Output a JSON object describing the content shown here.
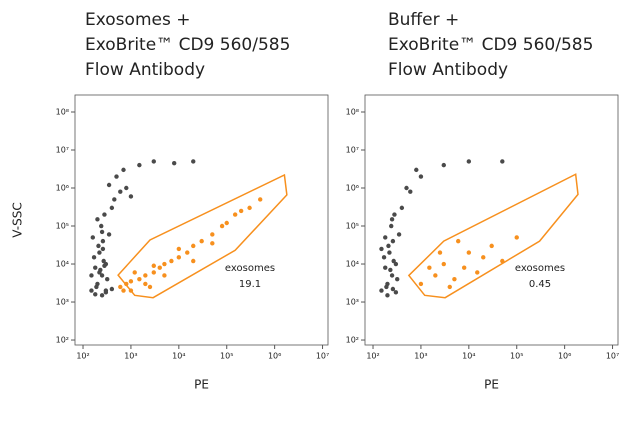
{
  "chart_data": [
    {
      "type": "scatter",
      "log": true,
      "title": [
        "Exosomes +",
        "ExoBrite™ CD9 560/585",
        "Flow Antibody"
      ],
      "xlabel": "PE",
      "ylabel": "V-SSC",
      "xlim": [
        68,
        13000000
      ],
      "ylim": [
        74,
        280000000
      ],
      "xticks": [
        {
          "value": 100,
          "label": "10²"
        },
        {
          "value": 1000,
          "label": "10³"
        },
        {
          "value": 10000,
          "label": "10⁴"
        },
        {
          "value": 100000,
          "label": "10⁵"
        },
        {
          "value": 1000000,
          "label": "10⁶"
        },
        {
          "value": 10000000,
          "label": "10⁷"
        }
      ],
      "yticks": [
        {
          "value": 100,
          "label": "10²"
        },
        {
          "value": 1000,
          "label": "10³"
        },
        {
          "value": 10000,
          "label": "10⁴"
        },
        {
          "value": 100000,
          "label": "10⁵"
        },
        {
          "value": 1000000,
          "label": "10⁶"
        },
        {
          "value": 10000000,
          "label": "10⁷"
        },
        {
          "value": 100000000,
          "label": "10⁸"
        }
      ],
      "series": [
        {
          "color": "#4a4a4a",
          "x": [
            150,
            200,
            250,
            180,
            300,
            220,
            260,
            350,
            170,
            240,
            280,
            210,
            320,
            190,
            230,
            270,
            400,
            160,
            250,
            300,
            200,
            450,
            600,
            800,
            1000,
            350,
            500,
            700,
            150,
            220,
            280,
            260,
            1500,
            3000,
            8000,
            20000,
            300,
            400,
            250,
            180
          ],
          "values": [
            2000,
            3000,
            5000,
            8000,
            10000,
            20000,
            40000,
            60000,
            15000,
            100000,
            200000,
            30000,
            4000,
            2500,
            7000,
            12000,
            300000,
            50000,
            1500,
            2000,
            150000,
            500000,
            800000,
            1000000,
            600000,
            1200000,
            2000000,
            3000000,
            5000,
            6000,
            9000,
            25000,
            4000000,
            5000000,
            4500000,
            5000000,
            1800,
            2200,
            70000,
            1600
          ]
        },
        {
          "color": "#f7901e",
          "x": [
            600,
            800,
            1000,
            1500,
            2000,
            3000,
            4000,
            5000,
            7000,
            10000,
            15000,
            20000,
            30000,
            50000,
            80000,
            100000,
            150000,
            200000,
            300000,
            500000,
            1000,
            2000,
            3000,
            5000,
            10000,
            20000,
            50000,
            700,
            1200,
            2500
          ],
          "values": [
            2500,
            3000,
            3500,
            4000,
            5000,
            6000,
            8000,
            10000,
            12000,
            15000,
            20000,
            30000,
            40000,
            60000,
            100000,
            120000,
            200000,
            250000,
            300000,
            500000,
            2000,
            3000,
            9000,
            5000,
            25000,
            12000,
            35000,
            2000,
            6000,
            2500
          ]
        }
      ],
      "gate": {
        "color": "#f7901e",
        "label": "exosomes",
        "value": 19.1,
        "x": [
          540,
          2500,
          1600000,
          1800000,
          150000,
          2900,
          1200
        ],
        "y": [
          5100,
          43000,
          2200000,
          660000,
          23000,
          1300,
          1500
        ]
      }
    },
    {
      "type": "scatter",
      "log": true,
      "title": [
        "Buffer +",
        "ExoBrite™ CD9 560/585",
        "Flow Antibody"
      ],
      "xlabel": "PE",
      "xlim": [
        68,
        13000000
      ],
      "ylim": [
        74,
        280000000
      ],
      "xticks": [
        {
          "value": 100,
          "label": "10²"
        },
        {
          "value": 1000,
          "label": "10³"
        },
        {
          "value": 10000,
          "label": "10⁴"
        },
        {
          "value": 100000,
          "label": "10⁵"
        },
        {
          "value": 1000000,
          "label": "10⁶"
        },
        {
          "value": 10000000,
          "label": "10⁷"
        }
      ],
      "yticks": [
        {
          "value": 100,
          "label": "10²"
        },
        {
          "value": 1000,
          "label": "10³"
        },
        {
          "value": 10000,
          "label": "10⁴"
        },
        {
          "value": 100000,
          "label": "10⁵"
        },
        {
          "value": 1000000,
          "label": "10⁶"
        },
        {
          "value": 10000000,
          "label": "10⁷"
        },
        {
          "value": 100000000,
          "label": "10⁸"
        }
      ],
      "series": [
        {
          "color": "#4a4a4a",
          "x": [
            150,
            200,
            250,
            180,
            300,
            220,
            260,
            350,
            170,
            240,
            280,
            210,
            320,
            190,
            230,
            270,
            400,
            600,
            1000,
            3000,
            10000,
            50000,
            200,
            250,
            300,
            180,
            500,
            800,
            150,
            260
          ],
          "values": [
            2000,
            3000,
            5000,
            8000,
            10000,
            20000,
            40000,
            60000,
            15000,
            100000,
            200000,
            30000,
            4000,
            2500,
            7000,
            12000,
            300000,
            800000,
            2000000,
            4000000,
            5000000,
            5000000,
            1500,
            150000,
            1800,
            50000,
            1000000,
            3000000,
            25000,
            2200
          ]
        },
        {
          "color": "#f7901e",
          "x": [
            1000,
            2000,
            3000,
            5000,
            8000,
            10000,
            20000,
            30000,
            50000,
            100000,
            2500,
            4000,
            15000,
            1500,
            6000
          ],
          "values": [
            3000,
            5000,
            10000,
            4000,
            8000,
            20000,
            15000,
            30000,
            12000,
            50000,
            20000,
            2500,
            6000,
            8000,
            40000
          ]
        }
      ],
      "gate": {
        "color": "#f7901e",
        "label": "exosomes",
        "value": 0.45,
        "x": [
          560,
          3000,
          1700000,
          1900000,
          300000,
          3200,
          1200
        ],
        "y": [
          5000,
          40000,
          2300000,
          680000,
          40000,
          1300,
          1500
        ]
      }
    }
  ]
}
